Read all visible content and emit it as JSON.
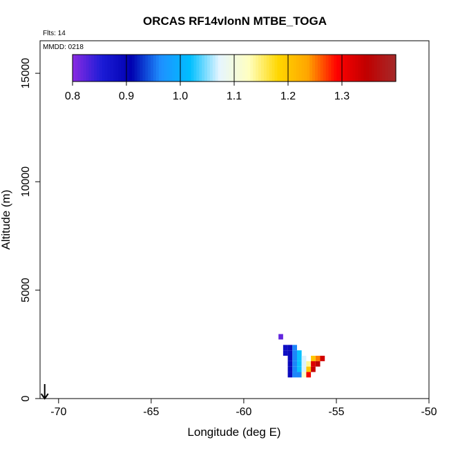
{
  "chart_data": {
    "type": "heatmap",
    "title": "ORCAS RF14vlonN MTBE_TOGA",
    "flights_label": "Flts: 14",
    "date_label": "MMDD: 0218",
    "xlabel": "Longitude (deg E)",
    "ylabel": "Altitude (m)",
    "xlim": [
      -71,
      -50
    ],
    "ylim": [
      0,
      16500
    ],
    "x_ticks": [
      -70,
      -65,
      -60,
      -55,
      -50
    ],
    "y_ticks": [
      0,
      5000,
      10000,
      15000
    ],
    "x_tick_labels": [
      "-70",
      "-65",
      "-60",
      "-55",
      "-50"
    ],
    "y_tick_labels": [
      "0",
      "5000",
      "10000",
      "15000"
    ],
    "colorbar": {
      "min": 0.8,
      "max": 1.4,
      "ticks": [
        0.8,
        0.9,
        1.0,
        1.1,
        1.2,
        1.3
      ],
      "tick_labels": [
        "0.8",
        "0.9",
        "1.0",
        "1.1",
        "1.2",
        "1.3"
      ],
      "colors": [
        "#8a2be2",
        "#1c1cd6",
        "#0000b0",
        "#1e90ff",
        "#00bfff",
        "#e6f5ff",
        "#ffffc0",
        "#ffd700",
        "#ffa500",
        "#ff0000",
        "#c00000",
        "#a52a2a"
      ]
    },
    "cell_size": {
      "dlon": 0.25,
      "dalt": 250
    },
    "cells": [
      {
        "lon": -58.0,
        "alt": 2850,
        "value": 0.82
      },
      {
        "lon": -57.75,
        "alt": 2350,
        "value": 0.88
      },
      {
        "lon": -57.75,
        "alt": 2100,
        "value": 0.88
      },
      {
        "lon": -57.5,
        "alt": 2350,
        "value": 0.89
      },
      {
        "lon": -57.5,
        "alt": 2100,
        "value": 0.89
      },
      {
        "lon": -57.5,
        "alt": 1850,
        "value": 0.89
      },
      {
        "lon": -57.5,
        "alt": 1600,
        "value": 0.89
      },
      {
        "lon": -57.5,
        "alt": 1350,
        "value": 0.89
      },
      {
        "lon": -57.5,
        "alt": 1100,
        "value": 0.89
      },
      {
        "lon": -57.25,
        "alt": 2350,
        "value": 0.96
      },
      {
        "lon": -57.25,
        "alt": 2100,
        "value": 0.96
      },
      {
        "lon": -57.25,
        "alt": 1850,
        "value": 0.96
      },
      {
        "lon": -57.25,
        "alt": 1600,
        "value": 0.96
      },
      {
        "lon": -57.25,
        "alt": 1350,
        "value": 0.96
      },
      {
        "lon": -57.25,
        "alt": 1100,
        "value": 0.96
      },
      {
        "lon": -57.0,
        "alt": 2100,
        "value": 1.02
      },
      {
        "lon": -57.0,
        "alt": 1850,
        "value": 1.02
      },
      {
        "lon": -57.0,
        "alt": 1600,
        "value": 1.02
      },
      {
        "lon": -57.0,
        "alt": 1350,
        "value": 1.02
      },
      {
        "lon": -57.0,
        "alt": 1100,
        "value": 0.96
      },
      {
        "lon": -56.75,
        "alt": 1850,
        "value": 1.07
      },
      {
        "lon": -56.75,
        "alt": 1600,
        "value": 1.07
      },
      {
        "lon": -56.75,
        "alt": 1350,
        "value": 1.07
      },
      {
        "lon": -56.75,
        "alt": 1100,
        "value": 1.12
      },
      {
        "lon": -56.5,
        "alt": 1600,
        "value": 1.14
      },
      {
        "lon": -56.5,
        "alt": 1350,
        "value": 1.2
      },
      {
        "lon": -56.5,
        "alt": 1100,
        "value": 1.3
      },
      {
        "lon": -56.25,
        "alt": 1850,
        "value": 1.2
      },
      {
        "lon": -56.25,
        "alt": 1600,
        "value": 1.32
      },
      {
        "lon": -56.25,
        "alt": 1350,
        "value": 1.34
      },
      {
        "lon": -56.0,
        "alt": 1850,
        "value": 1.25
      },
      {
        "lon": -56.0,
        "alt": 1600,
        "value": 1.35
      },
      {
        "lon": -55.75,
        "alt": 1850,
        "value": 1.33
      }
    ],
    "arrow_marker": {
      "lon": -70.75,
      "alt": 0
    }
  }
}
